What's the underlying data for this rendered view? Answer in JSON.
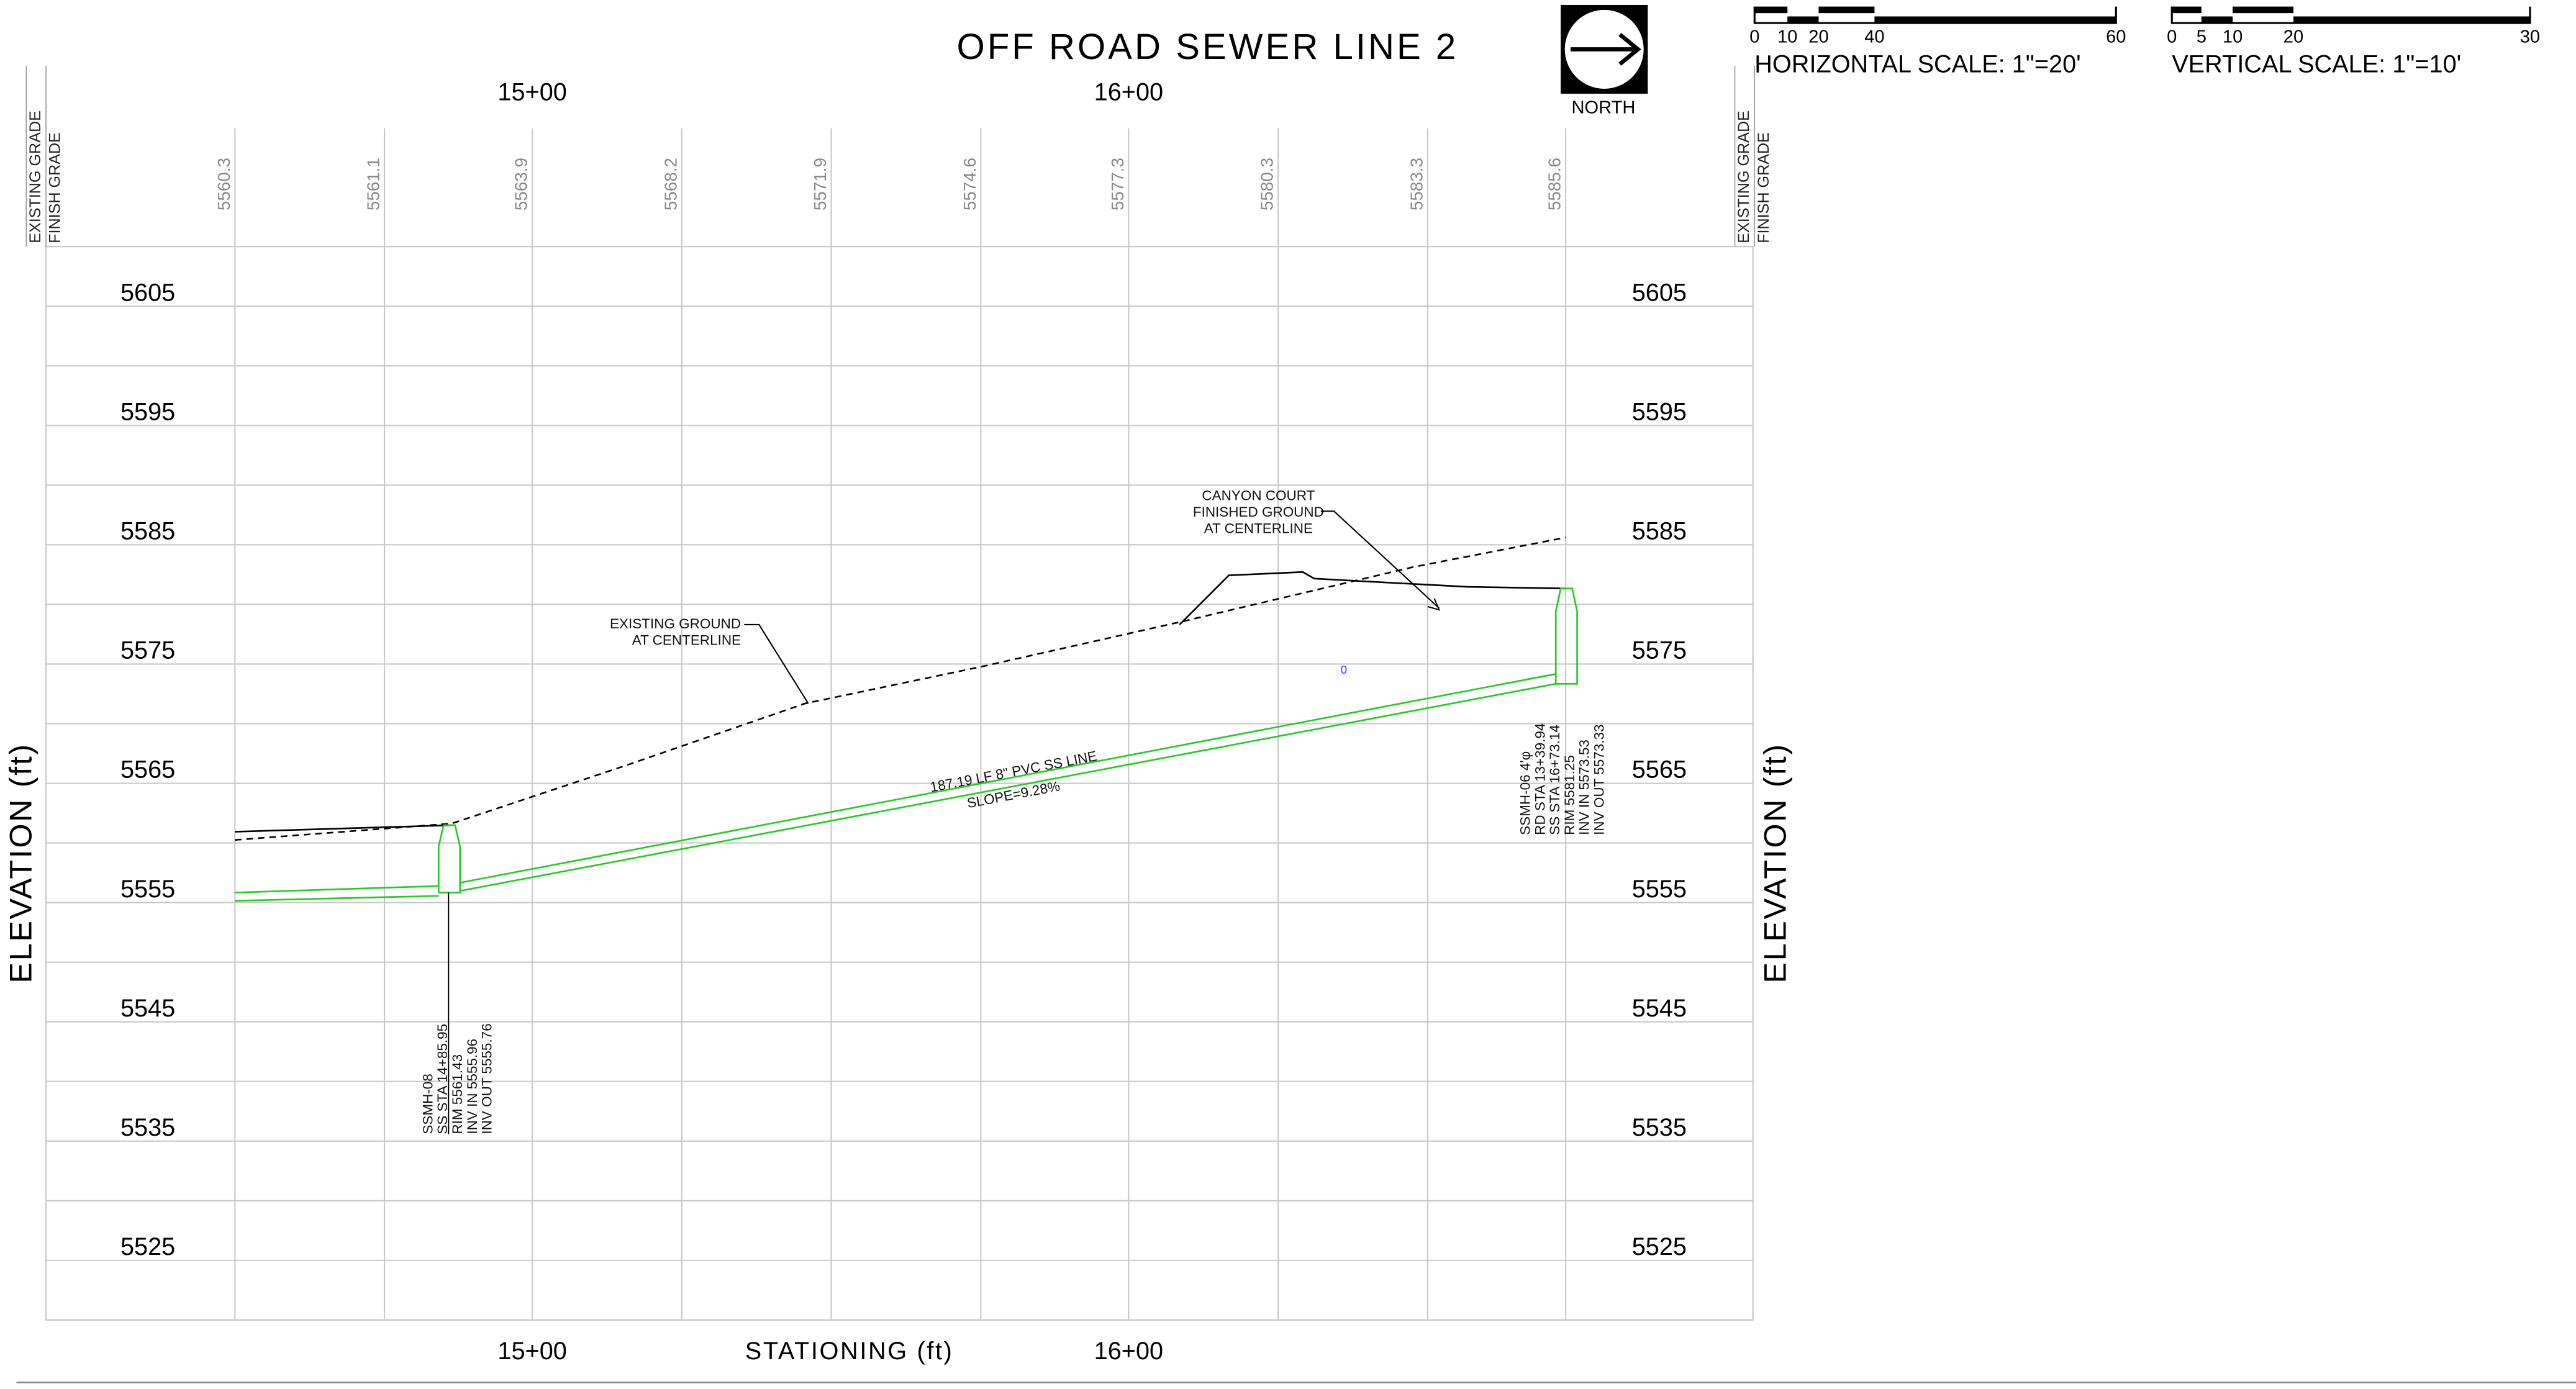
{
  "title": "OFF ROAD SEWER LINE 2",
  "north_label": "NORTH",
  "horizontal_scale": {
    "label": "HORIZONTAL SCALE: 1\"=20'",
    "ticks": [
      "0",
      "10",
      "20",
      "40",
      "60"
    ]
  },
  "vertical_scale": {
    "label": "VERTICAL SCALE: 1\"=10'",
    "ticks": [
      "0",
      "5",
      "10",
      "20",
      "30"
    ]
  },
  "grade_headers": {
    "existing": "EXISTING GRADE",
    "finish": "FINISH GRADE"
  },
  "stations": [
    "15+00",
    "16+00"
  ],
  "x_axis_label": "STATIONING (ft)",
  "y_axis_label": "ELEVATION (ft)",
  "grade_values": [
    "5560.3",
    "5561.1",
    "5563.9",
    "5568.2",
    "5571.9",
    "5574.6",
    "5577.3",
    "5580.3",
    "5583.3",
    "5585.6"
  ],
  "elevations": [
    "5605",
    "5595",
    "5585",
    "5575",
    "5565",
    "5555",
    "5545",
    "5535",
    "5525"
  ],
  "existing_ground_note": [
    "EXISTING GROUND",
    "AT CENTERLINE"
  ],
  "finished_ground_note": [
    "CANYON COURT",
    "FINISHED GROUND",
    "AT CENTERLINE"
  ],
  "pipe": {
    "label": "187.19 LF 8\" PVC SS LINE",
    "slope": "SLOPE=9.28%"
  },
  "manholes": [
    {
      "lines": [
        "SSMH-08",
        "SS STA 14+85.95",
        "RIM 5561.43",
        "INV IN 5555.96",
        "INV OUT 5555.76"
      ]
    },
    {
      "lines": [
        "SSMH-06 4'φ",
        "RD STA 13+39.94",
        "SS STA 16+73.14",
        "RIM 5581.25",
        "INV IN 5573.53",
        "INV OUT 5573.33"
      ]
    }
  ],
  "marker": "0"
}
